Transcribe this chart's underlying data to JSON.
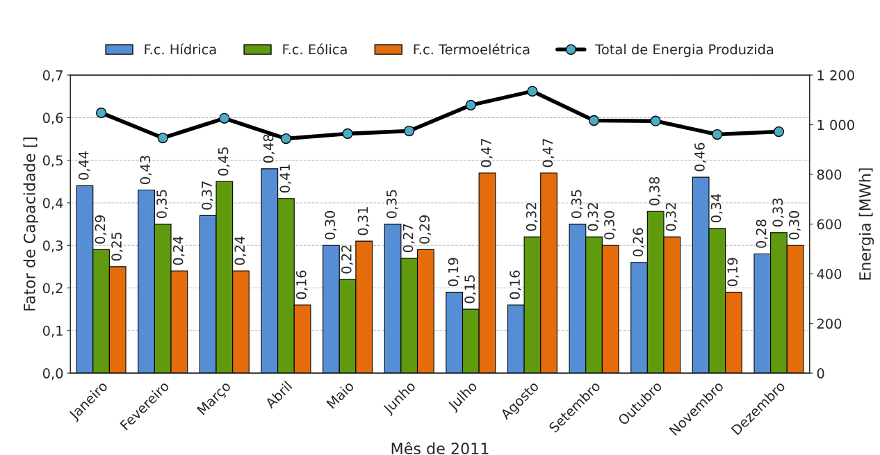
{
  "chart_data": {
    "type": "bar",
    "xlabel": "Mês de 2011",
    "ylabel": "Fator de Capacidade []",
    "y2label": "Energia [MWh]",
    "categories": [
      "Janeiro",
      "Fevereiro",
      "Março",
      "Abril",
      "Maio",
      "Junho",
      "Julho",
      "Agosto",
      "Setembro",
      "Outubro",
      "Novembro",
      "Dezembro"
    ],
    "series": [
      {
        "name": "F.c. Hídrica",
        "color": "#558ed5",
        "values": [
          0.44,
          0.43,
          0.37,
          0.48,
          0.3,
          0.35,
          0.19,
          0.16,
          0.35,
          0.26,
          0.46,
          0.28
        ],
        "value_labels": [
          "0,44",
          "0,43",
          "0,37",
          "0,48",
          "0,30",
          "0,35",
          "0,19",
          "0,16",
          "0,35",
          "0,26",
          "0,46",
          "0,28"
        ]
      },
      {
        "name": "F.c. Eólica",
        "color": "#5f9a0f",
        "values": [
          0.29,
          0.35,
          0.45,
          0.41,
          0.22,
          0.27,
          0.15,
          0.32,
          0.32,
          0.38,
          0.34,
          0.33
        ],
        "value_labels": [
          "0,29",
          "0,35",
          "0,45",
          "0,41",
          "0,22",
          "0,27",
          "0,15",
          "0,32",
          "0,32",
          "0,38",
          "0,34",
          "0,33"
        ]
      },
      {
        "name": "F.c. Termoelétrica",
        "color": "#e46c0a",
        "values": [
          0.25,
          0.24,
          0.24,
          0.16,
          0.31,
          0.29,
          0.47,
          0.47,
          0.3,
          0.32,
          0.19,
          0.3
        ],
        "value_labels": [
          "0,25",
          "0,24",
          "0,24",
          "0,16",
          "0,31",
          "0,29",
          "0,47",
          "0,47",
          "0,30",
          "0,32",
          "0,19",
          "0,30"
        ]
      },
      {
        "name": "Total de Energia Produzida",
        "type": "line",
        "axis": "y2",
        "color": "#000000",
        "marker": "circle",
        "values": [
          1048,
          947,
          1026,
          944,
          964,
          975,
          1079,
          1135,
          1017,
          1015,
          961,
          972
        ]
      }
    ],
    "ylim": [
      0,
      0.7
    ],
    "yticks": [
      {
        "value": 0,
        "label": "0,0"
      },
      {
        "value": 0.1,
        "label": "0,1"
      },
      {
        "value": 0.2,
        "label": "0,2"
      },
      {
        "value": 0.3,
        "label": "0,3"
      },
      {
        "value": 0.4,
        "label": "0,4"
      },
      {
        "value": 0.5,
        "label": "0,5"
      },
      {
        "value": 0.6,
        "label": "0,6"
      },
      {
        "value": 0.7,
        "label": "0,7"
      }
    ],
    "y2lim": [
      0,
      1200
    ],
    "y2ticks": [
      0,
      200,
      400,
      600,
      800,
      {
        "value": 1000,
        "label": "1 000"
      },
      {
        "value": 1200,
        "label": "1 200"
      }
    ],
    "grid": "y",
    "legend": "top"
  }
}
